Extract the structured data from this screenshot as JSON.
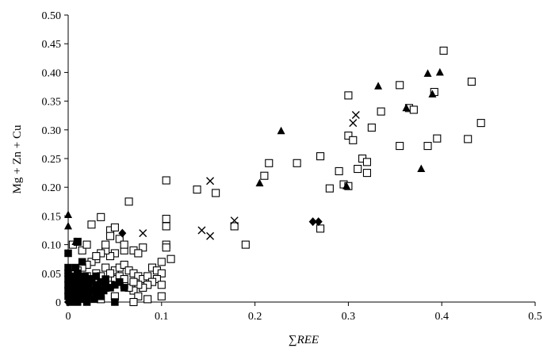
{
  "chart_data": {
    "type": "scatter",
    "xlabel": "∑REE",
    "ylabel": "Mg + Zn + Cu",
    "xlim": [
      0,
      0.5
    ],
    "ylim": [
      0,
      0.5
    ],
    "xticks": [
      "0",
      "0.1",
      "0.2",
      "0.3",
      "0.4",
      "0.5"
    ],
    "yticks": [
      "0",
      "0.05",
      "0.10",
      "0.15",
      "0.20",
      "0.25",
      "0.30",
      "0.35",
      "0.40",
      "0.45",
      "0.50"
    ],
    "grid": false,
    "series": [
      {
        "marker": "open-square",
        "color": "#000000",
        "points": [
          [
            0.005,
            0.1
          ],
          [
            0.01,
            0.105
          ],
          [
            0.015,
            0.09
          ],
          [
            0.02,
            0.1
          ],
          [
            0.025,
            0.135
          ],
          [
            0.035,
            0.148
          ],
          [
            0.045,
            0.125
          ],
          [
            0.05,
            0.13
          ],
          [
            0.065,
            0.175
          ],
          [
            0.105,
            0.212
          ],
          [
            0.105,
            0.145
          ],
          [
            0.105,
            0.132
          ],
          [
            0.105,
            0.1
          ],
          [
            0.105,
            0.095
          ],
          [
            0.11,
            0.075
          ],
          [
            0.08,
            0.095
          ],
          [
            0.07,
            0.09
          ],
          [
            0.075,
            0.085
          ],
          [
            0.06,
            0.09
          ],
          [
            0.05,
            0.085
          ],
          [
            0.045,
            0.08
          ],
          [
            0.04,
            0.09
          ],
          [
            0.035,
            0.085
          ],
          [
            0.03,
            0.075
          ],
          [
            0.025,
            0.07
          ],
          [
            0.02,
            0.065
          ],
          [
            0.015,
            0.06
          ],
          [
            0.01,
            0.055
          ],
          [
            0.005,
            0.05
          ],
          [
            0.02,
            0.045
          ],
          [
            0.03,
            0.05
          ],
          [
            0.04,
            0.06
          ],
          [
            0.05,
            0.055
          ],
          [
            0.055,
            0.06
          ],
          [
            0.06,
            0.065
          ],
          [
            0.065,
            0.055
          ],
          [
            0.07,
            0.05
          ],
          [
            0.075,
            0.045
          ],
          [
            0.08,
            0.04
          ],
          [
            0.085,
            0.045
          ],
          [
            0.09,
            0.06
          ],
          [
            0.095,
            0.055
          ],
          [
            0.1,
            0.05
          ],
          [
            0.1,
            0.07
          ],
          [
            0.095,
            0.04
          ],
          [
            0.09,
            0.035
          ],
          [
            0.085,
            0.03
          ],
          [
            0.08,
            0.025
          ],
          [
            0.075,
            0.03
          ],
          [
            0.07,
            0.02
          ],
          [
            0.065,
            0.025
          ],
          [
            0.06,
            0.03
          ],
          [
            0.055,
            0.035
          ],
          [
            0.05,
            0.04
          ],
          [
            0.045,
            0.03
          ],
          [
            0.04,
            0.025
          ],
          [
            0.035,
            0.03
          ],
          [
            0.03,
            0.02
          ],
          [
            0.025,
            0.025
          ],
          [
            0.02,
            0.03
          ],
          [
            0.015,
            0.02
          ],
          [
            0.01,
            0.015
          ],
          [
            0.005,
            0.02
          ],
          [
            0.01,
            0.03
          ],
          [
            0.015,
            0.04
          ],
          [
            0.025,
            0.04
          ],
          [
            0.035,
            0.045
          ],
          [
            0.045,
            0.05
          ],
          [
            0.055,
            0.045
          ],
          [
            0.06,
            0.04
          ],
          [
            0.07,
            0.035
          ],
          [
            0.075,
            0.01
          ],
          [
            0.05,
            0.01
          ],
          [
            0.035,
            0.005
          ],
          [
            0.025,
            0.01
          ],
          [
            0.045,
            0.115
          ],
          [
            0.055,
            0.11
          ],
          [
            0.06,
            0.1
          ],
          [
            0.04,
            0.1
          ],
          [
            0.03,
            0.08
          ],
          [
            0.07,
            0.0
          ],
          [
            0.085,
            0.005
          ],
          [
            0.1,
            0.03
          ],
          [
            0.1,
            0.01
          ],
          [
            0.138,
            0.196
          ],
          [
            0.158,
            0.19
          ],
          [
            0.178,
            0.132
          ],
          [
            0.19,
            0.1
          ],
          [
            0.21,
            0.22
          ],
          [
            0.215,
            0.242
          ],
          [
            0.245,
            0.242
          ],
          [
            0.27,
            0.254
          ],
          [
            0.27,
            0.128
          ],
          [
            0.28,
            0.198
          ],
          [
            0.29,
            0.228
          ],
          [
            0.295,
            0.205
          ],
          [
            0.3,
            0.36
          ],
          [
            0.3,
            0.29
          ],
          [
            0.3,
            0.202
          ],
          [
            0.305,
            0.282
          ],
          [
            0.31,
            0.232
          ],
          [
            0.315,
            0.25
          ],
          [
            0.32,
            0.225
          ],
          [
            0.32,
            0.244
          ],
          [
            0.325,
            0.304
          ],
          [
            0.335,
            0.332
          ],
          [
            0.355,
            0.378
          ],
          [
            0.355,
            0.272
          ],
          [
            0.365,
            0.338
          ],
          [
            0.37,
            0.335
          ],
          [
            0.385,
            0.272
          ],
          [
            0.392,
            0.366
          ],
          [
            0.395,
            0.285
          ],
          [
            0.402,
            0.438
          ],
          [
            0.428,
            0.284
          ],
          [
            0.432,
            0.384
          ],
          [
            0.442,
            0.312
          ]
        ]
      },
      {
        "marker": "filled-square",
        "color": "#000000",
        "points": [
          [
            0.0,
            0.085
          ],
          [
            0.0,
            0.06
          ],
          [
            0.0,
            0.05
          ],
          [
            0.0,
            0.04
          ],
          [
            0.0,
            0.03
          ],
          [
            0.0,
            0.02
          ],
          [
            0.0,
            0.01
          ],
          [
            0.002,
            0.0
          ],
          [
            0.005,
            0.045
          ],
          [
            0.005,
            0.035
          ],
          [
            0.005,
            0.025
          ],
          [
            0.005,
            0.015
          ],
          [
            0.005,
            0.005
          ],
          [
            0.008,
            0.06
          ],
          [
            0.008,
            0.03
          ],
          [
            0.01,
            0.105
          ],
          [
            0.01,
            0.05
          ],
          [
            0.01,
            0.04
          ],
          [
            0.01,
            0.02
          ],
          [
            0.01,
            0.0
          ],
          [
            0.012,
            0.01
          ],
          [
            0.015,
            0.07
          ],
          [
            0.015,
            0.035
          ],
          [
            0.015,
            0.025
          ],
          [
            0.015,
            0.005
          ],
          [
            0.018,
            0.045
          ],
          [
            0.018,
            0.015
          ],
          [
            0.02,
            0.035
          ],
          [
            0.02,
            0.02
          ],
          [
            0.02,
            0.0
          ],
          [
            0.022,
            0.03
          ],
          [
            0.022,
            0.01
          ],
          [
            0.025,
            0.04
          ],
          [
            0.025,
            0.02
          ],
          [
            0.028,
            0.005
          ],
          [
            0.03,
            0.03
          ],
          [
            0.03,
            0.045
          ],
          [
            0.03,
            0.015
          ],
          [
            0.032,
            0.025
          ],
          [
            0.035,
            0.035
          ],
          [
            0.035,
            0.01
          ],
          [
            0.038,
            0.02
          ],
          [
            0.04,
            0.04
          ],
          [
            0.04,
            0.03
          ],
          [
            0.045,
            0.025
          ],
          [
            0.05,
            0.03
          ],
          [
            0.05,
            0.0
          ],
          [
            0.055,
            0.035
          ],
          [
            0.06,
            0.025
          ]
        ]
      },
      {
        "marker": "filled-triangle",
        "color": "#000000",
        "points": [
          [
            0.0,
            0.152
          ],
          [
            0.0,
            0.132
          ],
          [
            0.008,
            0.105
          ],
          [
            0.205,
            0.207
          ],
          [
            0.228,
            0.298
          ],
          [
            0.298,
            0.202
          ],
          [
            0.332,
            0.376
          ],
          [
            0.362,
            0.338
          ],
          [
            0.378,
            0.232
          ],
          [
            0.385,
            0.398
          ],
          [
            0.39,
            0.362
          ],
          [
            0.398,
            0.4
          ]
        ]
      },
      {
        "marker": "cross",
        "color": "#000000",
        "points": [
          [
            0.08,
            0.12
          ],
          [
            0.143,
            0.125
          ],
          [
            0.152,
            0.115
          ],
          [
            0.152,
            0.211
          ],
          [
            0.178,
            0.142
          ],
          [
            0.305,
            0.312
          ],
          [
            0.308,
            0.326
          ]
        ]
      },
      {
        "marker": "filled-diamond",
        "color": "#000000",
        "points": [
          [
            0.0,
            0.0
          ],
          [
            0.058,
            0.12
          ],
          [
            0.262,
            0.14
          ],
          [
            0.268,
            0.14
          ]
        ]
      }
    ]
  }
}
